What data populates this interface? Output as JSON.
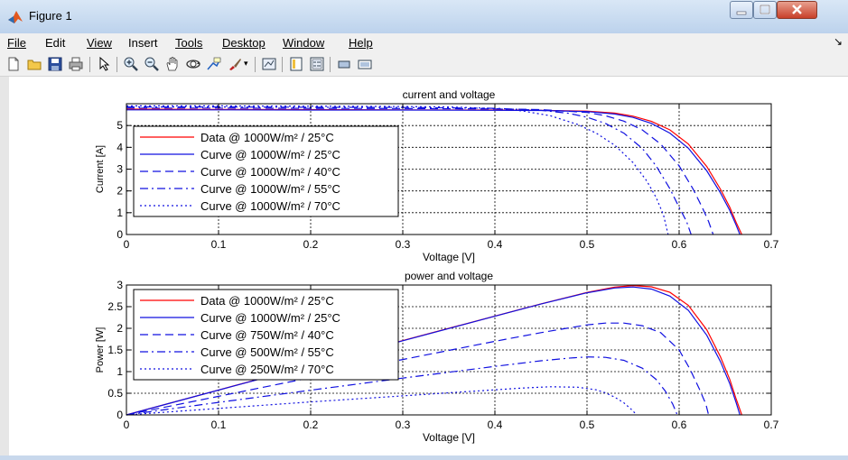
{
  "window": {
    "title": "Figure 1"
  },
  "menu": [
    "File",
    "Edit",
    "View",
    "Insert",
    "Tools",
    "Desktop",
    "Window",
    "Help"
  ],
  "toolbar_icons": [
    "new-figure-icon",
    "open-file-icon",
    "save-icon",
    "print-icon",
    "pointer-icon",
    "zoom-in-icon",
    "zoom-out-icon",
    "pan-icon",
    "rotate-3d-icon",
    "data-cursor-icon",
    "brush-icon",
    "link-plot-icon",
    "colorbar-icon",
    "legend-icon",
    "hide-plot-tools-icon",
    "show-plot-tools-icon"
  ],
  "chart_data": [
    {
      "type": "line",
      "title": "current and voltage",
      "xlabel": "Voltage [V]",
      "ylabel": "Current [A]",
      "xlim": [
        0,
        0.7
      ],
      "ylim": [
        0,
        6
      ],
      "xticks": [
        0,
        0.1,
        0.2,
        0.3,
        0.4,
        0.5,
        0.6,
        0.7
      ],
      "xtick_labels": [
        "0",
        "0.1",
        "0.2",
        "0.3",
        "0.4",
        "0.5",
        "0.6",
        "0.7"
      ],
      "yticks": [
        0,
        1,
        2,
        3,
        4,
        5
      ],
      "ytick_labels": [
        "0",
        "1",
        "2",
        "3",
        "4",
        "5"
      ],
      "grid": true,
      "legend_position": "left",
      "series": [
        {
          "name": "Data @ 1000W/m² / 25°C",
          "color": "#ff0000",
          "style": "solid",
          "x": [
            0,
            0.1,
            0.2,
            0.3,
            0.4,
            0.45,
            0.5,
            0.53,
            0.55,
            0.57,
            0.59,
            0.61,
            0.63,
            0.645,
            0.655,
            0.662,
            0.668
          ],
          "y": [
            5.75,
            5.74,
            5.73,
            5.72,
            5.71,
            5.7,
            5.66,
            5.57,
            5.43,
            5.19,
            4.8,
            4.15,
            3.12,
            2.07,
            1.25,
            0.55,
            0
          ]
        },
        {
          "name": "Curve @ 1000W/m² / 25°C",
          "color": "#1010e0",
          "style": "solid",
          "x": [
            0,
            0.1,
            0.2,
            0.3,
            0.4,
            0.45,
            0.5,
            0.53,
            0.55,
            0.57,
            0.59,
            0.61,
            0.63,
            0.645,
            0.655,
            0.662,
            0.666
          ],
          "y": [
            5.72,
            5.72,
            5.71,
            5.71,
            5.7,
            5.69,
            5.64,
            5.53,
            5.37,
            5.1,
            4.65,
            3.96,
            2.92,
            1.9,
            1.1,
            0.42,
            0
          ]
        },
        {
          "name": "Curve @ 1000W/m² / 40°C",
          "color": "#1010e0",
          "style": "dash",
          "x": [
            0,
            0.1,
            0.2,
            0.3,
            0.4,
            0.45,
            0.5,
            0.52,
            0.54,
            0.56,
            0.58,
            0.6,
            0.615,
            0.625,
            0.632,
            0.637
          ],
          "y": [
            5.8,
            5.8,
            5.79,
            5.78,
            5.76,
            5.73,
            5.6,
            5.45,
            5.2,
            4.8,
            4.15,
            3.15,
            2.1,
            1.25,
            0.6,
            0
          ]
        },
        {
          "name": "Curve @ 1000W/m² / 55°C",
          "color": "#1010e0",
          "style": "dashdot",
          "x": [
            0,
            0.1,
            0.2,
            0.3,
            0.4,
            0.45,
            0.48,
            0.5,
            0.52,
            0.54,
            0.56,
            0.575,
            0.59,
            0.6,
            0.608,
            0.613
          ],
          "y": [
            5.85,
            5.85,
            5.84,
            5.83,
            5.79,
            5.7,
            5.56,
            5.38,
            5.1,
            4.65,
            3.95,
            3.15,
            2.1,
            1.25,
            0.6,
            0
          ]
        },
        {
          "name": "Curve @ 1000W/m² / 70°C",
          "color": "#1010e0",
          "style": "dot",
          "x": [
            0,
            0.1,
            0.2,
            0.3,
            0.35,
            0.4,
            0.43,
            0.46,
            0.49,
            0.51,
            0.53,
            0.55,
            0.565,
            0.575,
            0.583,
            0.588
          ],
          "y": [
            5.9,
            5.9,
            5.89,
            5.87,
            5.85,
            5.78,
            5.67,
            5.45,
            5.05,
            4.65,
            4.1,
            3.3,
            2.45,
            1.7,
            0.9,
            0
          ]
        }
      ]
    },
    {
      "type": "line",
      "title": "power and voltage",
      "xlabel": "Voltage [V]",
      "ylabel": "Power [W]",
      "xlim": [
        0,
        0.7
      ],
      "ylim": [
        0,
        3
      ],
      "xticks": [
        0,
        0.1,
        0.2,
        0.3,
        0.4,
        0.5,
        0.6,
        0.7
      ],
      "xtick_labels": [
        "0",
        "0.1",
        "0.2",
        "0.3",
        "0.4",
        "0.5",
        "0.6",
        "0.7"
      ],
      "yticks": [
        0,
        0.5,
        1,
        1.5,
        2,
        2.5,
        3
      ],
      "ytick_labels": [
        "0",
        "0.5",
        "1",
        "1.5",
        "2",
        "2.5",
        "3"
      ],
      "grid": true,
      "legend_position": "left",
      "series": [
        {
          "name": "Data @ 1000W/m² / 25°C",
          "color": "#ff0000",
          "style": "solid",
          "x": [
            0,
            0.1,
            0.2,
            0.3,
            0.4,
            0.45,
            0.5,
            0.53,
            0.55,
            0.57,
            0.59,
            0.61,
            0.63,
            0.645,
            0.655,
            0.662,
            0.668
          ],
          "y": [
            0,
            0.574,
            1.146,
            1.716,
            2.284,
            2.565,
            2.83,
            2.952,
            2.987,
            2.958,
            2.832,
            2.532,
            1.966,
            1.335,
            0.819,
            0.364,
            0
          ]
        },
        {
          "name": "Curve @ 1000W/m² / 25°C",
          "color": "#1010e0",
          "style": "solid",
          "x": [
            0,
            0.1,
            0.2,
            0.3,
            0.4,
            0.45,
            0.5,
            0.53,
            0.55,
            0.57,
            0.59,
            0.61,
            0.63,
            0.645,
            0.655,
            0.662,
            0.666
          ],
          "y": [
            0,
            0.572,
            1.142,
            1.713,
            2.28,
            2.561,
            2.82,
            2.931,
            2.954,
            2.907,
            2.744,
            2.416,
            1.84,
            1.226,
            0.72,
            0.278,
            0
          ]
        },
        {
          "name": "Curve @ 750W/m² / 40°C",
          "color": "#1010e0",
          "style": "dash",
          "x": [
            0,
            0.1,
            0.2,
            0.3,
            0.4,
            0.45,
            0.5,
            0.52,
            0.54,
            0.56,
            0.58,
            0.6,
            0.612,
            0.622,
            0.629,
            0.632
          ],
          "y": [
            0,
            0.43,
            0.86,
            1.28,
            1.7,
            1.9,
            2.08,
            2.12,
            2.12,
            2.06,
            1.9,
            1.5,
            1.05,
            0.6,
            0.25,
            0
          ]
        },
        {
          "name": "Curve @ 500W/m² / 55°C",
          "color": "#1010e0",
          "style": "dashdot",
          "x": [
            0,
            0.1,
            0.2,
            0.3,
            0.4,
            0.45,
            0.48,
            0.5,
            0.52,
            0.54,
            0.56,
            0.575,
            0.585,
            0.593,
            0.598
          ],
          "y": [
            0,
            0.29,
            0.57,
            0.85,
            1.12,
            1.25,
            1.31,
            1.34,
            1.33,
            1.26,
            1.08,
            0.82,
            0.55,
            0.25,
            0
          ]
        },
        {
          "name": "Curve @ 250W/m² / 70°C",
          "color": "#1010e0",
          "style": "dot",
          "x": [
            0,
            0.1,
            0.2,
            0.3,
            0.35,
            0.4,
            0.43,
            0.46,
            0.49,
            0.51,
            0.52,
            0.53,
            0.54,
            0.548,
            0.554
          ],
          "y": [
            0,
            0.15,
            0.3,
            0.44,
            0.51,
            0.58,
            0.62,
            0.65,
            0.64,
            0.58,
            0.51,
            0.41,
            0.28,
            0.13,
            0
          ]
        }
      ]
    }
  ]
}
